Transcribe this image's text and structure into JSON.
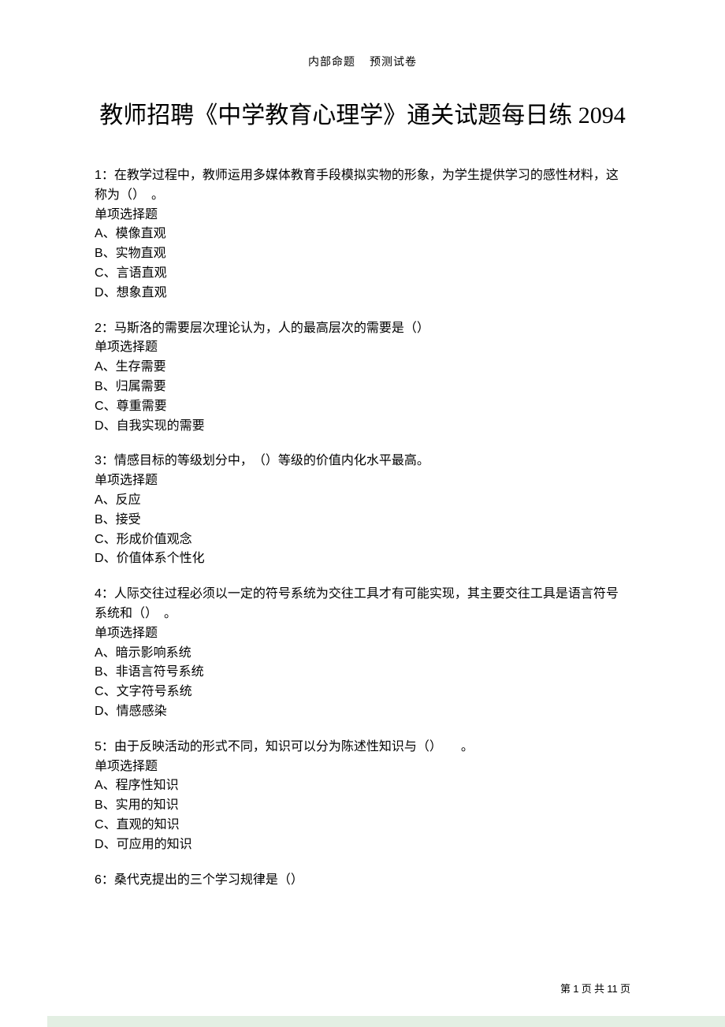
{
  "header": {
    "left": "内部命题",
    "right": "预测试卷"
  },
  "title": "教师招聘《中学教育心理学》通关试题每日练 2094",
  "questions": [
    {
      "num": "1",
      "stem": "：在教学过程中，教师运用多媒体教育手段模拟实物的形象，为学生提供学习的感性材料，这称为（）　。",
      "type": "单项选择题",
      "options": [
        {
          "letter": "A",
          "text": "、模像直观"
        },
        {
          "letter": "B",
          "text": "、实物直观"
        },
        {
          "letter": "C",
          "text": "、言语直观"
        },
        {
          "letter": "D",
          "text": "、想象直观"
        }
      ]
    },
    {
      "num": "2",
      "stem": "：马斯洛的需要层次理论认为，人的最高层次的需要是（）",
      "type": "单项选择题",
      "options": [
        {
          "letter": "A",
          "text": "、生存需要"
        },
        {
          "letter": "B",
          "text": "、归属需要"
        },
        {
          "letter": "C",
          "text": "、尊重需要"
        },
        {
          "letter": "D",
          "text": "、自我实现的需要"
        }
      ]
    },
    {
      "num": "3",
      "stem": "：情感目标的等级划分中，　（）等级的价值内化水平最高。",
      "type": "单项选择题",
      "options": [
        {
          "letter": "A",
          "text": "、反应"
        },
        {
          "letter": "B",
          "text": "、接受"
        },
        {
          "letter": "C",
          "text": "、形成价值观念"
        },
        {
          "letter": "D",
          "text": "、价值体系个性化"
        }
      ]
    },
    {
      "num": "4",
      "stem": "：人际交往过程必须以一定的符号系统为交往工具才有可能实现，其主要交往工具是语言符号系统和（）　。",
      "type": "单项选择题",
      "options": [
        {
          "letter": "A",
          "text": "、暗示影响系统"
        },
        {
          "letter": "B",
          "text": "、非语言符号系统"
        },
        {
          "letter": "C",
          "text": "、文字符号系统"
        },
        {
          "letter": "D",
          "text": "、情感感染"
        }
      ]
    },
    {
      "num": "5",
      "stem": "：由于反映活动的形式不同，知识可以分为陈述性知识与（）　　。",
      "type": "单项选择题",
      "options": [
        {
          "letter": "A",
          "text": "、程序性知识"
        },
        {
          "letter": "B",
          "text": "、实用的知识"
        },
        {
          "letter": "C",
          "text": "、直观的知识"
        },
        {
          "letter": "D",
          "text": "、可应用的知识"
        }
      ]
    },
    {
      "num": "6",
      "stem": "：桑代克提出的三个学习规律是（）",
      "type": "",
      "options": []
    }
  ],
  "footer": {
    "prefix": "第 ",
    "page": "1",
    "mid": " 页 共 ",
    "total": "11",
    "suffix": " 页"
  },
  "colors": {
    "background": "#ffffff",
    "text": "#000000",
    "bottom_bar": "#e3efe3"
  },
  "typography": {
    "header_fontsize": 14,
    "title_fontsize": 30,
    "body_fontsize": 16,
    "footer_fontsize": 13,
    "cn_font": "SimSun",
    "latin_font": "Arial"
  }
}
